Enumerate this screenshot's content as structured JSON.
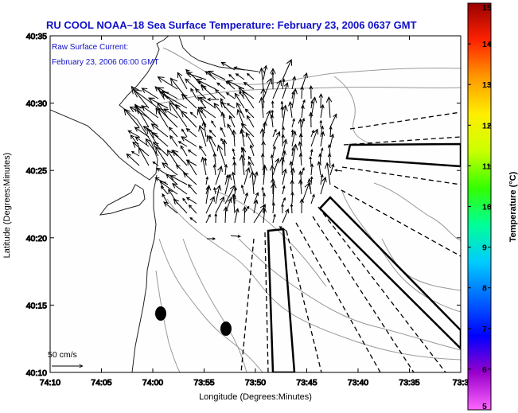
{
  "title": "RU COOL  NOAA–18  Sea Surface Temperature:  February 23, 2006 0637 GMT",
  "legend": {
    "line1": "Raw Surface Current:",
    "line2": "February 23, 2006 06:00 GMT"
  },
  "axes": {
    "x_label": "Longitude (Degrees:Minutes)",
    "y_label": "Latitude (Degrees:Minutes)",
    "x_ticks": [
      "74:10",
      "74:05",
      "74:00",
      "73:55",
      "73:50",
      "73:45",
      "73:40",
      "73:35",
      "73:3"
    ],
    "y_ticks": [
      "40:35",
      "40:30",
      "40:25",
      "40:20",
      "40:15",
      "40:10"
    ]
  },
  "scale_label": "50 cm/s",
  "colorbar": {
    "label": "Temperature (°C)",
    "ticks": [
      "15",
      "14",
      "13",
      "12",
      "11",
      "10",
      "9",
      "8",
      "7",
      "6",
      "5"
    ],
    "min": 5,
    "max": 15,
    "colors": [
      "#ff66ff",
      "#9900cc",
      "#0000ff",
      "#0066ff",
      "#00ccff",
      "#00ff99",
      "#33ff00",
      "#ccff00",
      "#ffee00",
      "#ff9900",
      "#ff2200",
      "#990000"
    ]
  },
  "chart_data": {
    "type": "map",
    "x_range": [
      "74:10",
      "73:30"
    ],
    "y_range": [
      "40:10",
      "40:35"
    ],
    "layers": [
      "coastline",
      "bathymetry contours",
      "surface current vectors",
      "radar coverage wedges"
    ],
    "markers": [
      {
        "lon": "73:59",
        "lat": "40:14.6"
      },
      {
        "lon": "73:52.5",
        "lat": "40:13.5"
      }
    ]
  }
}
